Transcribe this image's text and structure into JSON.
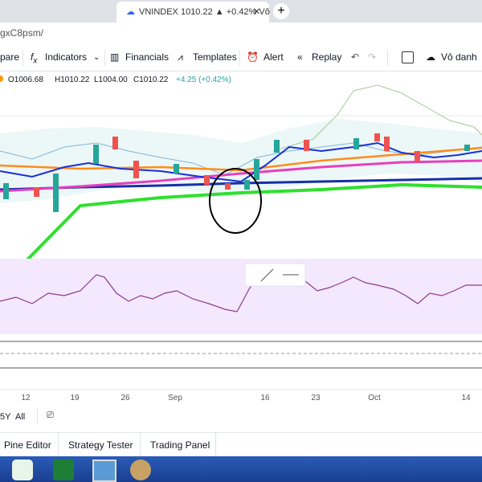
{
  "browser": {
    "tab_title": "VNINDEX 1010.22 ▲ +0.42% Vô",
    "url": "gxC8psm/"
  },
  "toolbar": [
    "pare",
    "Indicators",
    "Financials",
    "Templates",
    "Alert",
    "Replay",
    "Vô danh"
  ],
  "chart": {
    "ohlc": {
      "open": "O1006.68",
      "high": "H1010.22",
      "low": "L1004.00",
      "close": "C1010.22",
      "change": "+4.25 (+0.42%)"
    },
    "time_labels": [
      "12",
      "19",
      "26",
      "Sep",
      "16",
      "23",
      "Oct",
      "14"
    ]
  },
  "ranges": [
    "5Y",
    "All"
  ],
  "panels": [
    "Pine Editor",
    "Strategy Tester",
    "Trading Panel"
  ]
}
